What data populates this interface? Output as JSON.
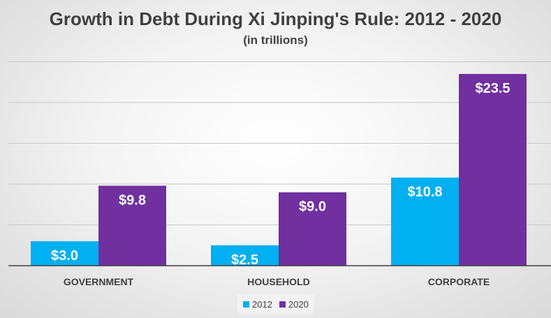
{
  "chart_data": {
    "type": "bar",
    "title": "Growth in Debt During Xi Jinping's Rule: 2012 - 2020",
    "subtitle": "(in trillions)",
    "categories": [
      "GOVERNMENT",
      "HOUSEHOLD",
      "CORPORATE"
    ],
    "series": [
      {
        "name": "2012",
        "color": "#00b0f0",
        "values": [
          3.0,
          2.5,
          10.8
        ],
        "labels": [
          "$3.0",
          "$2.5",
          "$10.8"
        ]
      },
      {
        "name": "2020",
        "color": "#7030a0",
        "values": [
          9.8,
          9.0,
          23.5
        ],
        "labels": [
          "$9.8",
          "$9.0",
          "$23.5"
        ]
      }
    ],
    "xlabel": "",
    "ylabel": "",
    "ylim": [
      0,
      25
    ],
    "y_gridline_step": 5,
    "y_tick_labels_shown": false,
    "grid": true,
    "legend_position": "bottom"
  },
  "colors": {
    "gridline": "#c8c8c8",
    "axis": "#404040",
    "text": "#404040",
    "data_label": "#ffffff"
  }
}
